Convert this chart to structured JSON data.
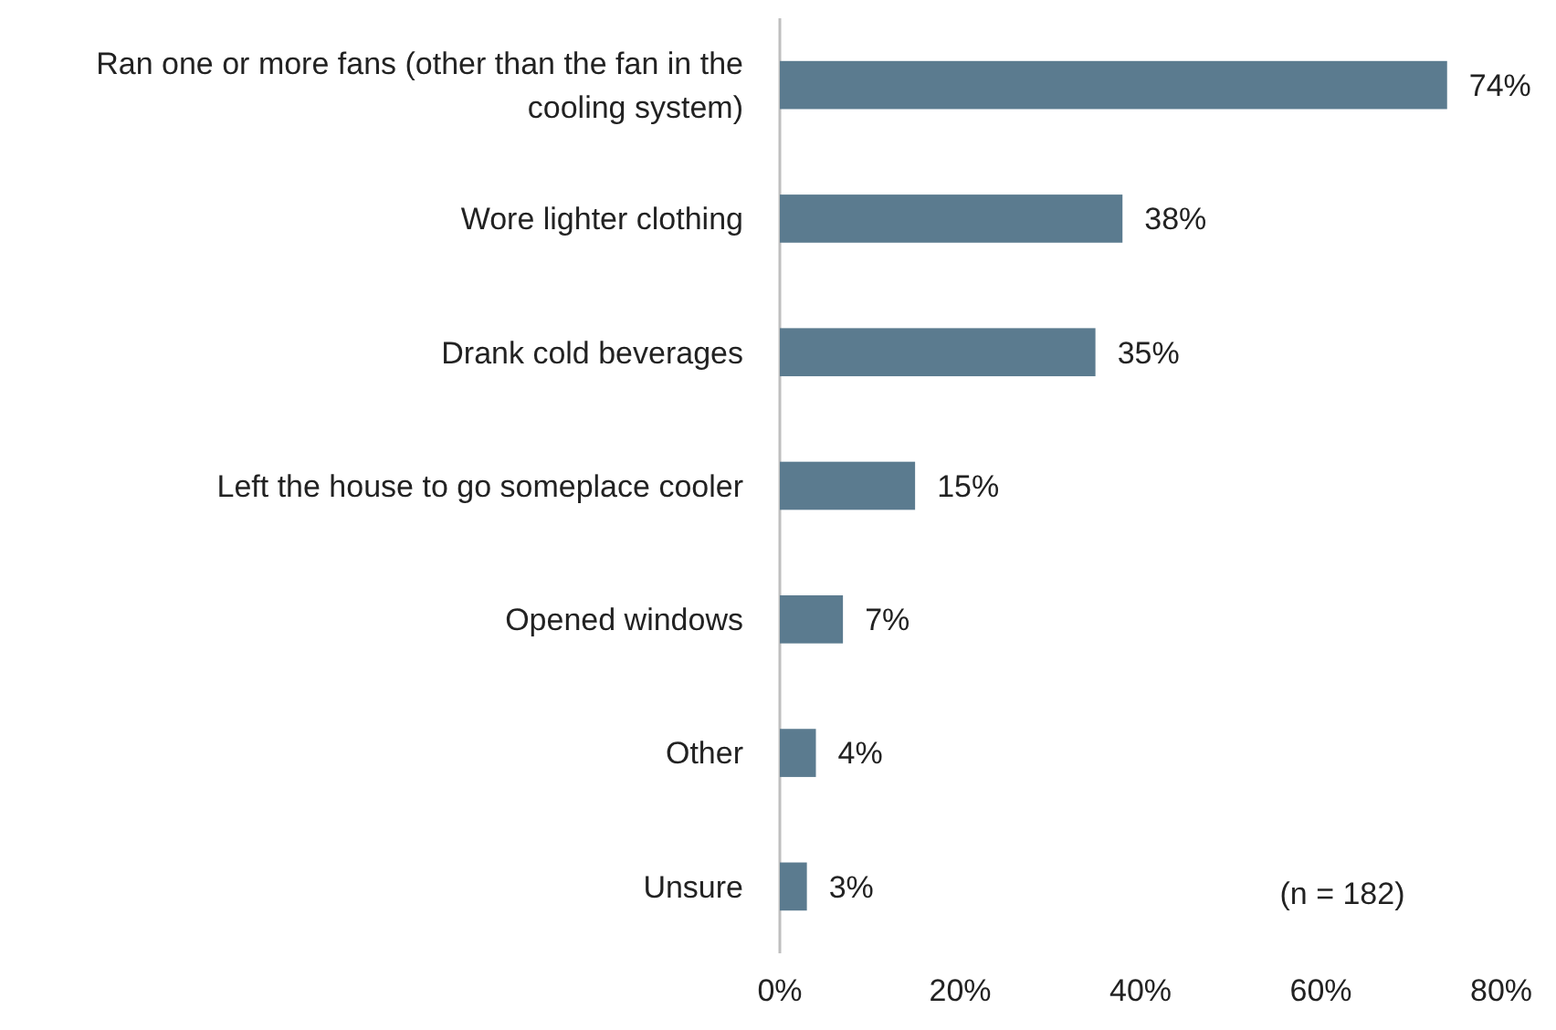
{
  "chart_data": {
    "type": "bar",
    "orientation": "horizontal",
    "categories": [
      "Ran one or more fans (other than the fan in the cooling system)",
      "Wore lighter clothing",
      "Drank cold beverages",
      "Left the house to go someplace cooler",
      "Opened windows",
      "Other",
      "Unsure"
    ],
    "values": [
      74,
      38,
      35,
      15,
      7,
      4,
      3
    ],
    "value_labels": [
      "74%",
      "38%",
      "35%",
      "15%",
      "7%",
      "4%",
      "3%"
    ],
    "color": "#5b7b8f",
    "xlim": [
      0,
      80
    ],
    "xticks": [
      {
        "value": 0,
        "label": "0%"
      },
      {
        "value": 20,
        "label": "20%"
      },
      {
        "value": 40,
        "label": "40%"
      },
      {
        "value": 60,
        "label": "60%"
      },
      {
        "value": 80,
        "label": "80%"
      }
    ],
    "grid": false,
    "annotations": [
      "(n = 182)"
    ]
  }
}
